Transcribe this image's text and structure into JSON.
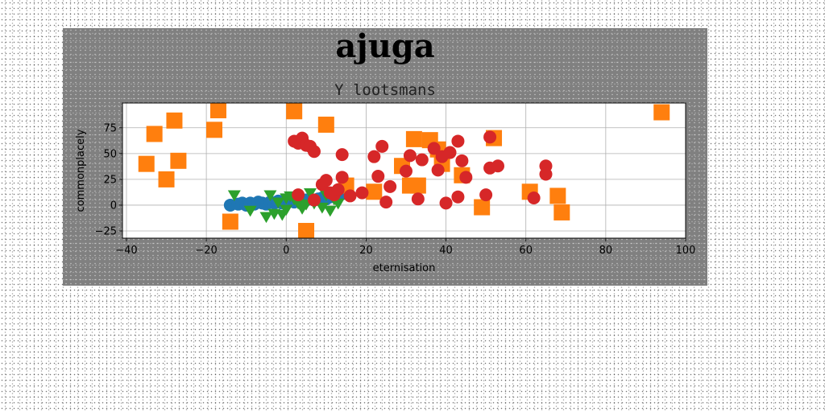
{
  "chart_data": {
    "type": "scatter",
    "suptitle": "ajuga",
    "title": "Y lootsmans",
    "xlabel": "eternisation",
    "ylabel": "commonplacely",
    "xlim": [
      -41,
      100
    ],
    "ylim": [
      -32,
      99
    ],
    "xticks": [
      -40,
      -20,
      0,
      20,
      40,
      60,
      80,
      100
    ],
    "yticks": [
      -25,
      0,
      25,
      50,
      75
    ],
    "grid": true,
    "series": [
      {
        "marker": "circle",
        "color": "#1f77b4",
        "points": [
          [
            -14,
            0
          ],
          [
            -12,
            1
          ],
          [
            -11,
            2
          ],
          [
            -10,
            0
          ],
          [
            -9,
            2
          ],
          [
            -8,
            1
          ],
          [
            -7,
            3
          ],
          [
            -6,
            2
          ],
          [
            -5,
            1
          ],
          [
            -4,
            3
          ],
          [
            -3,
            2
          ],
          [
            -2,
            4
          ],
          [
            -1,
            2
          ],
          [
            0,
            3
          ],
          [
            1,
            4
          ],
          [
            2,
            3
          ],
          [
            3,
            5
          ],
          [
            4,
            4
          ],
          [
            5,
            5
          ],
          [
            6,
            6
          ],
          [
            7,
            5
          ],
          [
            8,
            6
          ],
          [
            9,
            7
          ],
          [
            10,
            6
          ],
          [
            11,
            8
          ],
          [
            12,
            9
          ],
          [
            13,
            10
          ],
          [
            14,
            11
          ]
        ]
      },
      {
        "marker": "triangle-down",
        "color": "#2ca02c",
        "points": [
          [
            -13,
            10
          ],
          [
            -9,
            -5
          ],
          [
            -5,
            -11
          ],
          [
            -4,
            10
          ],
          [
            -3,
            -8
          ],
          [
            -2,
            3
          ],
          [
            -1,
            -9
          ],
          [
            0,
            7
          ],
          [
            0,
            -4
          ],
          [
            1,
            9
          ],
          [
            2,
            6
          ],
          [
            3,
            2
          ],
          [
            4,
            -3
          ],
          [
            5,
            1
          ],
          [
            6,
            12
          ],
          [
            7,
            2
          ],
          [
            9,
            -2
          ],
          [
            10,
            10
          ],
          [
            11,
            -5
          ],
          [
            12,
            6
          ],
          [
            13,
            2
          ]
        ]
      },
      {
        "marker": "square",
        "color": "#ff7f0e",
        "points": [
          [
            -35,
            40
          ],
          [
            -33,
            69
          ],
          [
            -30,
            25
          ],
          [
            -28,
            82
          ],
          [
            -27,
            43
          ],
          [
            -18,
            73
          ],
          [
            -17,
            92
          ],
          [
            -14,
            -16
          ],
          [
            2,
            91
          ],
          [
            5,
            -25
          ],
          [
            10,
            78
          ],
          [
            15,
            19
          ],
          [
            22,
            13
          ],
          [
            29,
            38
          ],
          [
            31,
            19
          ],
          [
            32,
            64
          ],
          [
            33,
            19
          ],
          [
            36,
            63
          ],
          [
            38,
            54
          ],
          [
            39,
            40
          ],
          [
            44,
            29
          ],
          [
            49,
            -2
          ],
          [
            52,
            65
          ],
          [
            61,
            13
          ],
          [
            68,
            9
          ],
          [
            69,
            -7
          ],
          [
            94,
            90
          ]
        ]
      },
      {
        "marker": "circle",
        "color": "#d62728",
        "points": [
          [
            2,
            62
          ],
          [
            3,
            60
          ],
          [
            4,
            65
          ],
          [
            5,
            58
          ],
          [
            6,
            57
          ],
          [
            7,
            52
          ],
          [
            9,
            20
          ],
          [
            10,
            24
          ],
          [
            11,
            12
          ],
          [
            12,
            10
          ],
          [
            13,
            15
          ],
          [
            14,
            27
          ],
          [
            14,
            49
          ],
          [
            16,
            9
          ],
          [
            19,
            12
          ],
          [
            22,
            47
          ],
          [
            23,
            28
          ],
          [
            24,
            57
          ],
          [
            25,
            3
          ],
          [
            26,
            18
          ],
          [
            30,
            33
          ],
          [
            31,
            48
          ],
          [
            33,
            6
          ],
          [
            34,
            44
          ],
          [
            37,
            55
          ],
          [
            38,
            34
          ],
          [
            39,
            47
          ],
          [
            40,
            2
          ],
          [
            41,
            51
          ],
          [
            43,
            62
          ],
          [
            43,
            8
          ],
          [
            44,
            43
          ],
          [
            45,
            27
          ],
          [
            50,
            10
          ],
          [
            51,
            36
          ],
          [
            51,
            66
          ],
          [
            53,
            38
          ],
          [
            62,
            7
          ],
          [
            65,
            38
          ],
          [
            65,
            30
          ],
          [
            3,
            10
          ],
          [
            7,
            5
          ]
        ]
      }
    ]
  }
}
